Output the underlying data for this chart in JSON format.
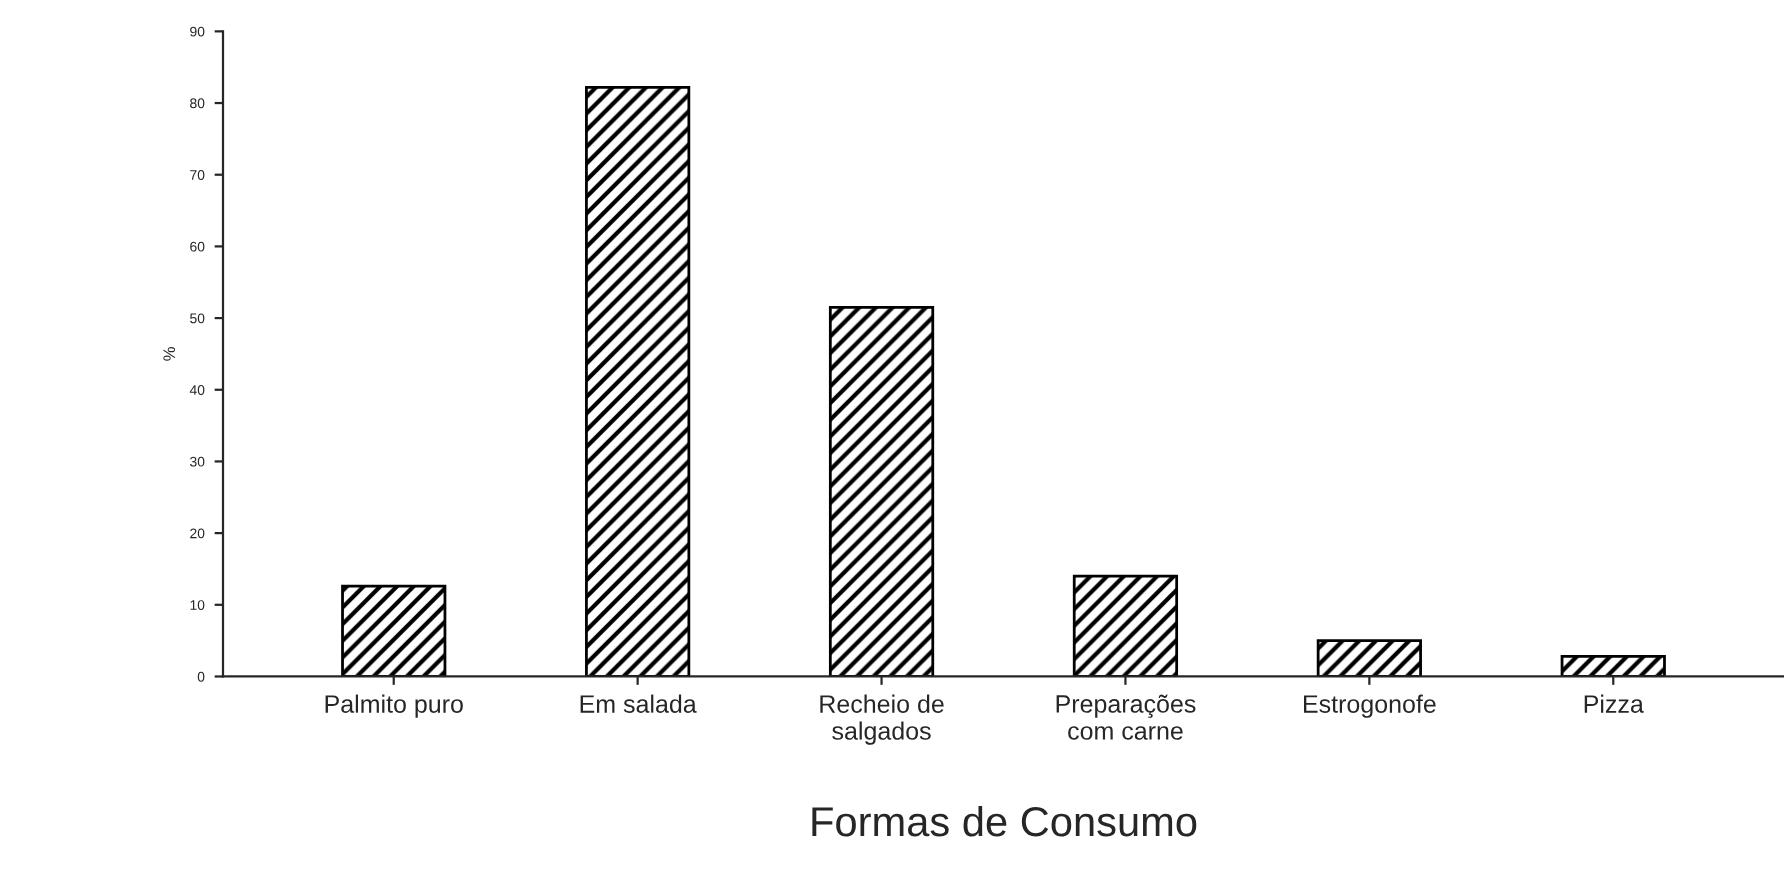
{
  "chart_data": {
    "type": "bar",
    "xlabel": "Formas de Consumo",
    "ylabel": "%",
    "categories": [
      "Palmito puro",
      "Em salada",
      "Recheio de\nsalgados",
      "Preparações\ncom carne",
      "Estrogonofe",
      "Pizza"
    ],
    "values": [
      12.6,
      82.2,
      51.5,
      14,
      5,
      2.8
    ],
    "color": "#000000",
    "ylim": [
      0,
      90
    ],
    "yticks": [
      0,
      10,
      20,
      30,
      40,
      50,
      60,
      70,
      80,
      90
    ],
    "grid": false
  }
}
